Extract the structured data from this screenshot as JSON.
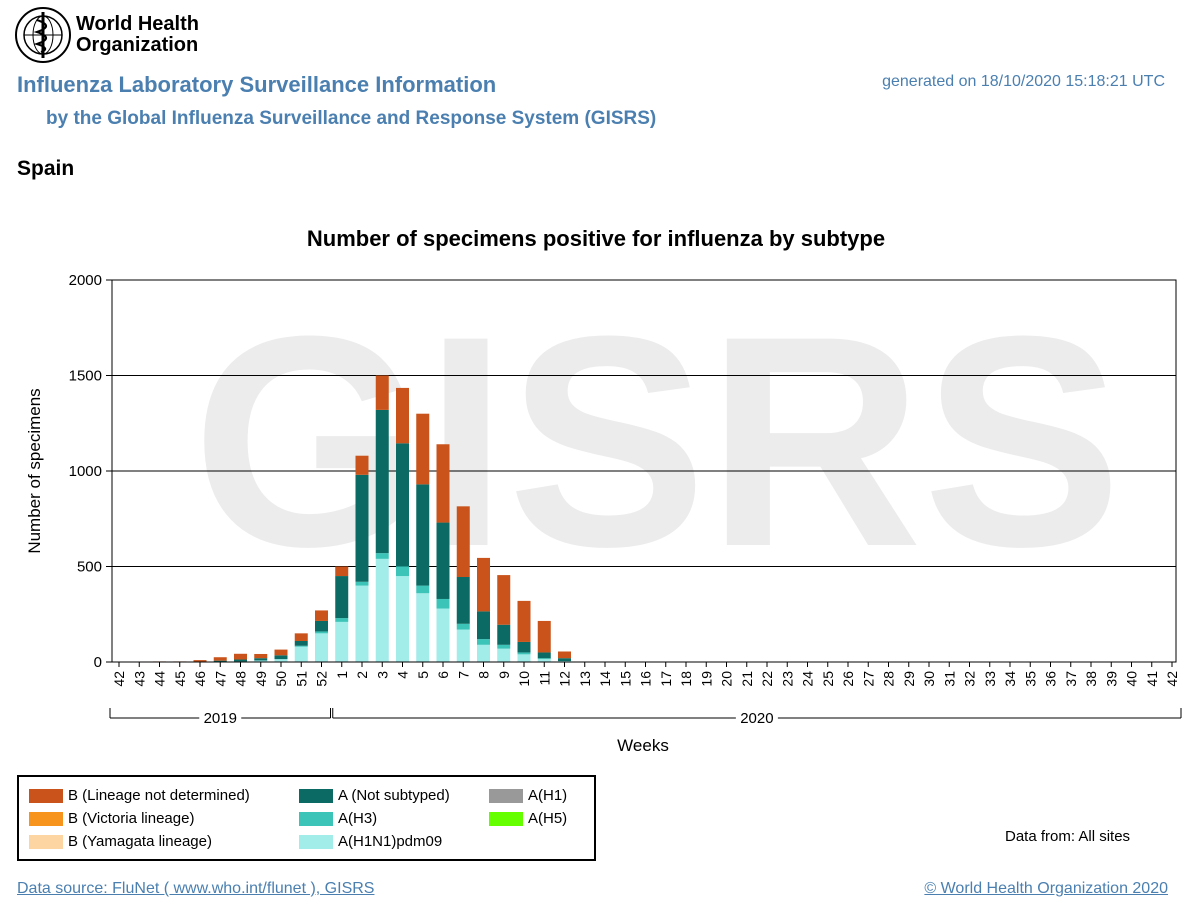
{
  "header": {
    "org_name_line1": "World Health",
    "org_name_line2": "Organization",
    "title": "Influenza Laboratory Surveillance Information",
    "subtitle": "by the Global Influenza Surveillance and Response System (GISRS)",
    "generated": "generated on 18/10/2020 15:18:21 UTC",
    "country": "Spain"
  },
  "footer": {
    "data_source": "Data source: FluNet ( www.who.int/flunet ), GISRS",
    "copyright": "© World Health Organization 2020",
    "data_from": "Data from: All sites"
  },
  "watermark": "GISRS",
  "colors": {
    "header_blue": "#4a7fb0",
    "b_lineage_not_determined": "#c9531a",
    "b_victoria": "#f7941d",
    "b_yamagata": "#fdd5a3",
    "a_not_subtyped": "#0b6b64",
    "a_h3": "#3cc4b8",
    "a_h1n1pdm09": "#a2ecea",
    "a_h1": "#999999",
    "a_h5": "#66ff00"
  },
  "chart_data": {
    "type": "bar",
    "stacked": true,
    "title": "Number of specimens positive for influenza by subtype",
    "xlabel": "Weeks",
    "ylabel": "Number of specimens",
    "ylim": [
      0,
      2000
    ],
    "yticks": [
      0,
      500,
      1000,
      1500,
      2000
    ],
    "grid": "horizontal",
    "categories": [
      "42",
      "43",
      "44",
      "45",
      "46",
      "47",
      "48",
      "49",
      "50",
      "51",
      "52",
      "1",
      "2",
      "3",
      "4",
      "5",
      "6",
      "7",
      "8",
      "9",
      "10",
      "11",
      "12",
      "13",
      "14",
      "15",
      "16",
      "17",
      "18",
      "19",
      "20",
      "21",
      "22",
      "23",
      "24",
      "25",
      "26",
      "27",
      "28",
      "29",
      "30",
      "31",
      "32",
      "33",
      "34",
      "35",
      "36",
      "37",
      "38",
      "39",
      "40",
      "41",
      "42"
    ],
    "years": [
      {
        "label": "2019",
        "from": 0,
        "to": 10
      },
      {
        "label": "2020",
        "from": 11,
        "to": 52
      }
    ],
    "series": [
      {
        "name": "A(H1N1)pdm09",
        "color": "#a2ecea",
        "values": [
          0,
          0,
          0,
          0,
          0,
          2,
          3,
          8,
          15,
          80,
          150,
          210,
          400,
          540,
          450,
          360,
          280,
          170,
          90,
          70,
          40,
          15,
          5,
          0,
          0,
          0,
          0,
          0,
          0,
          0,
          0,
          0,
          0,
          0,
          0,
          0,
          0,
          0,
          0,
          0,
          0,
          0,
          0,
          0,
          0,
          0,
          0,
          0,
          0,
          0,
          0,
          0,
          0
        ]
      },
      {
        "name": "A(H3)",
        "color": "#3cc4b8",
        "values": [
          0,
          0,
          0,
          0,
          0,
          0,
          0,
          0,
          0,
          5,
          10,
          20,
          20,
          30,
          50,
          40,
          50,
          30,
          30,
          20,
          10,
          5,
          0,
          0,
          0,
          0,
          0,
          0,
          0,
          0,
          0,
          0,
          0,
          0,
          0,
          0,
          0,
          0,
          0,
          0,
          0,
          0,
          0,
          0,
          0,
          0,
          0,
          0,
          0,
          0,
          0,
          0,
          0
        ]
      },
      {
        "name": "A(Not subtyped)",
        "color": "#0b6b64",
        "values": [
          0,
          0,
          0,
          0,
          2,
          5,
          10,
          12,
          20,
          25,
          55,
          220,
          560,
          750,
          645,
          530,
          400,
          245,
          145,
          105,
          55,
          30,
          15,
          0,
          0,
          0,
          0,
          0,
          0,
          0,
          0,
          0,
          0,
          0,
          0,
          0,
          0,
          0,
          0,
          0,
          0,
          0,
          0,
          0,
          0,
          0,
          0,
          0,
          0,
          0,
          0,
          0,
          0
        ]
      },
      {
        "name": "A(H1)",
        "color": "#999999",
        "values": [
          0,
          0,
          0,
          0,
          0,
          0,
          0,
          0,
          0,
          0,
          0,
          0,
          0,
          0,
          0,
          0,
          0,
          0,
          0,
          0,
          0,
          0,
          0,
          0,
          0,
          0,
          0,
          0,
          0,
          0,
          0,
          0,
          0,
          0,
          0,
          0,
          0,
          0,
          0,
          0,
          0,
          0,
          0,
          0,
          0,
          0,
          0,
          0,
          0,
          0,
          0,
          0,
          0
        ]
      },
      {
        "name": "A(H5)",
        "color": "#66ff00",
        "values": [
          0,
          0,
          0,
          0,
          0,
          0,
          0,
          0,
          0,
          0,
          0,
          0,
          0,
          0,
          0,
          0,
          0,
          0,
          0,
          0,
          0,
          0,
          0,
          0,
          0,
          0,
          0,
          0,
          0,
          0,
          0,
          0,
          0,
          0,
          0,
          0,
          0,
          0,
          0,
          0,
          0,
          0,
          0,
          0,
          0,
          0,
          0,
          0,
          0,
          0,
          0,
          0,
          0
        ]
      },
      {
        "name": "B (Lineage not determined)",
        "color": "#c9531a",
        "values": [
          0,
          2,
          3,
          3,
          8,
          18,
          30,
          22,
          30,
          40,
          55,
          50,
          100,
          180,
          290,
          370,
          410,
          370,
          280,
          260,
          215,
          165,
          35,
          0,
          0,
          0,
          0,
          0,
          0,
          0,
          0,
          0,
          0,
          0,
          0,
          0,
          0,
          0,
          0,
          0,
          0,
          0,
          0,
          0,
          0,
          0,
          0,
          0,
          0,
          0,
          0,
          0,
          0
        ]
      },
      {
        "name": "B (Victoria lineage)",
        "color": "#f7941d",
        "values": [
          0,
          0,
          0,
          0,
          0,
          0,
          0,
          0,
          0,
          0,
          0,
          0,
          0,
          0,
          0,
          0,
          0,
          0,
          0,
          0,
          0,
          0,
          0,
          0,
          0,
          0,
          0,
          0,
          0,
          0,
          0,
          0,
          0,
          0,
          0,
          0,
          0,
          0,
          0,
          0,
          0,
          0,
          0,
          0,
          0,
          0,
          0,
          0,
          0,
          0,
          0,
          0,
          0
        ]
      },
      {
        "name": "B (Yamagata lineage)",
        "color": "#fdd5a3",
        "values": [
          0,
          0,
          0,
          0,
          0,
          0,
          0,
          0,
          0,
          0,
          0,
          0,
          0,
          0,
          0,
          0,
          0,
          0,
          0,
          0,
          0,
          0,
          0,
          0,
          0,
          0,
          0,
          0,
          0,
          0,
          0,
          0,
          0,
          0,
          0,
          0,
          0,
          0,
          0,
          0,
          0,
          0,
          0,
          0,
          0,
          0,
          0,
          0,
          0,
          0,
          0,
          0,
          0
        ]
      }
    ],
    "legend": [
      {
        "label": "B (Lineage not determined)",
        "color": "#c9531a"
      },
      {
        "label": "B (Victoria lineage)",
        "color": "#f7941d"
      },
      {
        "label": "B (Yamagata lineage)",
        "color": "#fdd5a3"
      },
      {
        "label": "A (Not subtyped)",
        "color": "#0b6b64"
      },
      {
        "label": "A(H3)",
        "color": "#3cc4b8"
      },
      {
        "label": "A(H1N1)pdm09",
        "color": "#a2ecea"
      },
      {
        "label": "A(H1)",
        "color": "#999999"
      },
      {
        "label": "A(H5)",
        "color": "#66ff00"
      }
    ]
  }
}
